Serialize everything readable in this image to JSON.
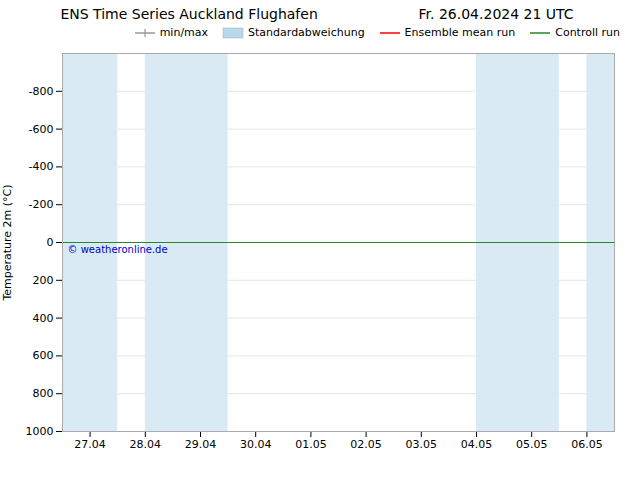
{
  "chart_data": {
    "type": "line",
    "title": "ENS Time Series Auckland Flughafen",
    "subtitle": "Fr. 26.04.2024 21 UTC",
    "ylabel": "Temperature 2m (°C)",
    "categories": [
      "27.04",
      "28.04",
      "29.04",
      "30.04",
      "01.05",
      "02.05",
      "03.05",
      "04.05",
      "05.05",
      "06.05"
    ],
    "series": [
      {
        "name": "min/max",
        "color": "#999999",
        "type": "errorbar",
        "values": [
          null,
          null,
          null,
          null,
          null,
          null,
          null,
          null,
          null,
          null
        ]
      },
      {
        "name": "Standardabweichung",
        "color": "#b8d8ee",
        "type": "area",
        "values": [
          null,
          null,
          null,
          null,
          null,
          null,
          null,
          null,
          null,
          null
        ]
      },
      {
        "name": "Ensemble mean run",
        "color": "#ff0000",
        "type": "line",
        "values": [
          null,
          null,
          null,
          null,
          null,
          null,
          null,
          null,
          null,
          null
        ]
      },
      {
        "name": "Controll run",
        "color": "#228b22",
        "type": "line",
        "values": [
          null,
          null,
          null,
          null,
          null,
          null,
          null,
          null,
          null,
          null
        ]
      }
    ],
    "ylim": [
      1000,
      -1000
    ],
    "yticks": [
      -800,
      -600,
      -400,
      -200,
      0,
      200,
      400,
      600,
      800,
      1000
    ],
    "grid": true,
    "legend": "upper right",
    "shaded_bands": [
      {
        "x_start": -0.5,
        "x_end": 0.5
      },
      {
        "x_start": 1.0,
        "x_end": 2.5
      },
      {
        "x_start": 7.0,
        "x_end": 8.5
      },
      {
        "x_start": 9.0,
        "x_end": 9.5
      }
    ],
    "shade_color": "#daeaf5",
    "horizontal_line": {
      "value": 0,
      "color": "#228b22"
    },
    "annotations": [
      {
        "text": "© weatheronline.de",
        "color": "#0000cc"
      }
    ]
  }
}
